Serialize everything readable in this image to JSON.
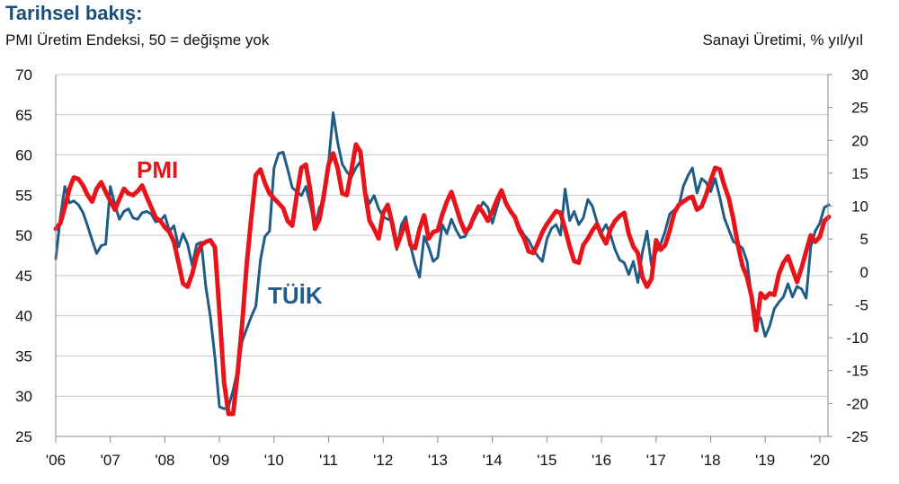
{
  "title": "Tarihsel bakış:",
  "subtitle": "PMI Üretim Endeksi, 50 = değişme yok",
  "right_axis_title": "Sanayi Üretimi, % yıl/yıl",
  "colors": {
    "pmi": "#e8141c",
    "tuik": "#1f5c87",
    "grid": "#c8c8c8"
  },
  "chart_data": {
    "type": "line",
    "x_tick_labels": [
      "'06",
      "'07",
      "'08",
      "'09",
      "'10",
      "'11",
      "'12",
      "'13",
      "'14",
      "'15",
      "'16",
      "'17",
      "'18",
      "'19",
      "'20"
    ],
    "y_left": {
      "range": [
        25,
        70
      ],
      "ticks": [
        "70",
        "65",
        "60",
        "55",
        "50",
        "45",
        "40",
        "35",
        "30",
        "25"
      ]
    },
    "y_right": {
      "range": [
        -25,
        30
      ],
      "ticks": [
        "30",
        "25",
        "20",
        "15",
        "10",
        "5",
        "0",
        "-5",
        "-10",
        "-15",
        "-20",
        "-25"
      ]
    },
    "annotations": [
      {
        "text": "PMI",
        "series": "PMI"
      },
      {
        "text": "TÜİK",
        "series": "TÜİK"
      }
    ],
    "series": [
      {
        "name": "PMI",
        "axis": "left",
        "start_year": 2006,
        "values": [
          50.8,
          51.5,
          53.5,
          55.8,
          57.2,
          57.0,
          56.2,
          55.0,
          54.2,
          55.8,
          56.6,
          55.4,
          54.3,
          53.2,
          54.5,
          55.8,
          55.2,
          55.0,
          55.5,
          56.2,
          54.8,
          53.5,
          52.2,
          51.8,
          51.0,
          50.4,
          49.2,
          46.6,
          44.0,
          43.6,
          45.2,
          47.5,
          48.8,
          49.2,
          49.4,
          48.5,
          40.5,
          31.8,
          27.8,
          27.8,
          33.0,
          39.0,
          46.5,
          52.2,
          57.5,
          58.2,
          56.5,
          55.2,
          54.6,
          54.0,
          53.4,
          51.8,
          51.2,
          55.0,
          58.4,
          58.8,
          55.5,
          50.8,
          52.0,
          55.2,
          58.8,
          60.2,
          58.3,
          55.2,
          55.0,
          58.0,
          61.3,
          60.4,
          55.4,
          51.8,
          50.8,
          49.6,
          52.8,
          53.8,
          51.4,
          48.6,
          50.2,
          51.6,
          48.8,
          48.4,
          50.8,
          52.5,
          49.6,
          50.4,
          50.6,
          52.6,
          54.2,
          55.4,
          53.6,
          51.8,
          50.4,
          51.0,
          52.4,
          53.6,
          52.8,
          51.8,
          53.0,
          54.4,
          55.6,
          54.0,
          53.0,
          52.2,
          50.6,
          49.6,
          48.0,
          47.8,
          49.0,
          50.4,
          51.4,
          52.2,
          53.0,
          52.8,
          50.8,
          48.6,
          46.8,
          46.6,
          48.8,
          49.6,
          50.6,
          51.4,
          50.0,
          49.0,
          50.8,
          51.8,
          52.4,
          52.8,
          50.2,
          48.6,
          47.8,
          44.8,
          43.6,
          44.6,
          49.4,
          48.2,
          48.8,
          50.6,
          52.8,
          53.8,
          54.2,
          54.6,
          54.8,
          53.2,
          53.6,
          55.0,
          56.8,
          58.4,
          58.2,
          56.2,
          54.6,
          52.0,
          48.8,
          46.2,
          44.8,
          42.4,
          38.2,
          42.8,
          42.2,
          42.8,
          42.6,
          45.2,
          46.6,
          47.4,
          45.8,
          44.2,
          46.0,
          48.0,
          50.0,
          49.2,
          49.8,
          51.8,
          52.3
        ]
      },
      {
        "name": "TÜİK",
        "axis": "right",
        "start_year": 2006,
        "values": [
          2.0,
          8.2,
          13.0,
          10.5,
          10.8,
          10.2,
          9.0,
          7.0,
          4.8,
          2.8,
          4.0,
          4.2,
          13.0,
          10.2,
          8.0,
          9.2,
          9.6,
          8.2,
          8.0,
          9.0,
          9.2,
          8.8,
          7.6,
          7.8,
          8.6,
          6.2,
          7.0,
          3.8,
          5.8,
          4.2,
          1.0,
          4.2,
          4.5,
          -2.2,
          -6.8,
          -13.0,
          -20.5,
          -20.8,
          -20.5,
          -18.0,
          -14.8,
          -10.5,
          -8.6,
          -6.8,
          -5.2,
          1.8,
          5.4,
          6.2,
          15.8,
          18.0,
          18.2,
          15.6,
          12.8,
          12.2,
          11.6,
          13.0,
          10.2,
          6.8,
          9.8,
          10.8,
          16.6,
          24.2,
          19.6,
          16.4,
          15.2,
          14.4,
          15.8,
          16.8,
          12.2,
          10.4,
          11.6,
          9.6,
          8.4,
          8.0,
          7.8,
          3.4,
          7.2,
          8.4,
          4.0,
          1.2,
          -0.8,
          5.4,
          3.8,
          1.6,
          2.2,
          7.2,
          5.8,
          8.0,
          6.4,
          5.2,
          5.4,
          6.8,
          8.0,
          9.4,
          10.6,
          9.8,
          7.4,
          9.8,
          12.0,
          10.4,
          9.0,
          8.6,
          6.8,
          5.6,
          4.8,
          3.4,
          2.4,
          1.6,
          5.0,
          6.6,
          7.2,
          5.6,
          12.6,
          7.8,
          9.2,
          7.2,
          8.2,
          11.0,
          10.0,
          7.6,
          6.0,
          7.2,
          5.6,
          3.4,
          1.8,
          1.4,
          -0.4,
          1.6,
          -1.6,
          3.0,
          6.2,
          1.0,
          3.0,
          4.2,
          6.2,
          8.8,
          9.4,
          10.0,
          13.0,
          14.6,
          15.8,
          12.0,
          14.2,
          13.6,
          12.2,
          14.2,
          11.4,
          8.2,
          6.4,
          4.6,
          4.2,
          3.6,
          1.6,
          -3.8,
          -6.6,
          -7.0,
          -9.8,
          -8.2,
          -5.6,
          -4.6,
          -3.8,
          -1.8,
          -3.8,
          -2.2,
          -2.6,
          -4.0,
          3.8,
          6.2,
          7.4,
          9.8,
          10.2
        ]
      }
    ]
  }
}
